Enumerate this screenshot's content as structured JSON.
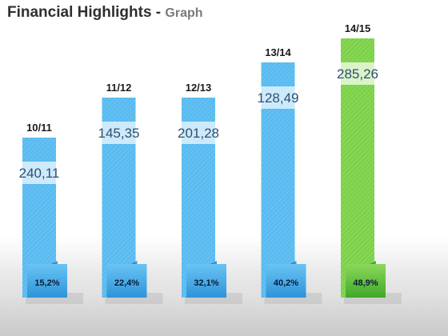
{
  "header": {
    "title": "Financial Highlights",
    "separator": "-",
    "subtitle": "Graph"
  },
  "colors": {
    "bar_blue": "#58baf0",
    "bar_blue_dark": "#2e93d9",
    "bar_green": "#7cd148",
    "bar_green_dark": "#3fa82c",
    "label_band": "#d6eefc"
  },
  "chart_data": {
    "type": "bar",
    "categories": [
      "10/11",
      "11/12",
      "12/13",
      "13/14",
      "14/15"
    ],
    "values": [
      240.11,
      145.35,
      201.28,
      128.49,
      285.26
    ],
    "value_labels": [
      "240,11",
      "145,35",
      "201,28",
      "128,49",
      "285,26"
    ],
    "percent_labels": [
      "15,2%",
      "22,4%",
      "32,1%",
      "40,2%",
      "48,9%"
    ],
    "highlighted_index": 4,
    "title": "Financial Highlights - Graph",
    "xlabel": "",
    "ylabel": "",
    "grid": false,
    "legend": "none"
  }
}
